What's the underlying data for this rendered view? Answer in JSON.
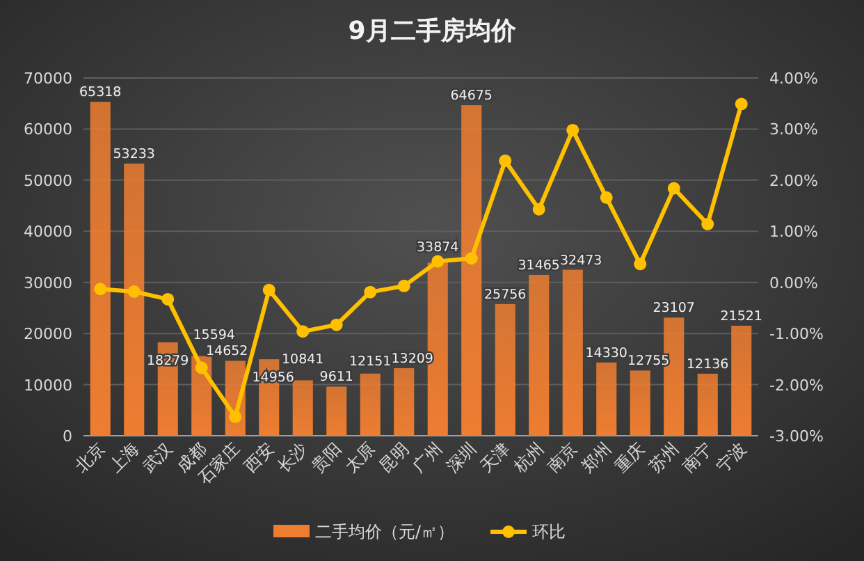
{
  "chart_data": {
    "type": "bar",
    "title": "9月二手房均价",
    "categories": [
      "北京",
      "上海",
      "武汉",
      "成都",
      "石家庄",
      "西安",
      "长沙",
      "贵阳",
      "太原",
      "昆明",
      "广州",
      "深圳",
      "天津",
      "杭州",
      "南京",
      "郑州",
      "重庆",
      "苏州",
      "南宁",
      "宁波"
    ],
    "series": [
      {
        "name": "二手均价（元/㎡）",
        "color": "#ed7d31",
        "values": [
          65318,
          53233,
          18279,
          15594,
          14652,
          14956,
          10841,
          9611,
          12151,
          13209,
          33874,
          64675,
          25756,
          31465,
          32473,
          14330,
          12755,
          23107,
          12136,
          21521
        ],
        "value_labels": [
          "65318",
          "53233",
          "18279",
          "15594",
          "14652",
          "14956",
          "10841",
          "9611",
          "12151",
          "13209",
          "33874",
          "64675",
          "25756",
          "31465",
          "32473",
          "14330",
          "12755",
          "23107",
          "12136",
          "21521"
        ]
      },
      {
        "name": "环比",
        "type": "line",
        "axis": "y2",
        "color": "#ffc000",
        "marker": "circle",
        "values": [
          -0.13,
          -0.18,
          -0.33,
          -1.67,
          -2.63,
          -0.15,
          -0.96,
          -0.83,
          -0.19,
          -0.07,
          0.41,
          0.47,
          2.38,
          1.43,
          2.98,
          1.66,
          0.36,
          1.84,
          1.14,
          3.49
        ]
      }
    ],
    "ylim": [
      0,
      70000
    ],
    "yticks": [
      0,
      10000,
      20000,
      30000,
      40000,
      50000,
      60000,
      70000
    ],
    "y2lim": [
      -3,
      4
    ],
    "y2ticks": [
      {
        "value": -3,
        "label": "-3.00%"
      },
      {
        "value": -2,
        "label": "-2.00%"
      },
      {
        "value": -1,
        "label": "-1.00%"
      },
      {
        "value": 0,
        "label": "0.00%"
      },
      {
        "value": 1,
        "label": "1.00%"
      },
      {
        "value": 2,
        "label": "2.00%"
      },
      {
        "value": 3,
        "label": "3.00%"
      },
      {
        "value": 4,
        "label": "4.00%"
      }
    ],
    "grid": "y",
    "legend": "bottom"
  }
}
